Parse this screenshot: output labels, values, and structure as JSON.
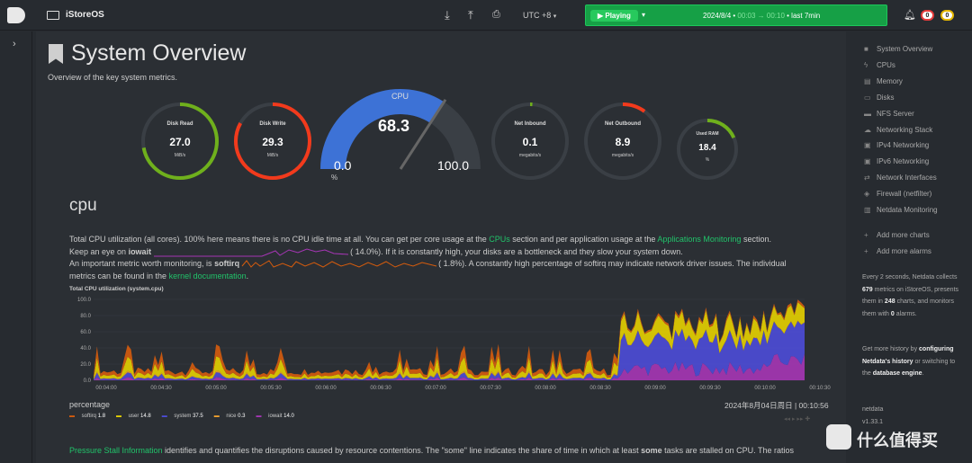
{
  "topbar": {
    "host": "iStoreOS",
    "timezone": "UTC +8",
    "play_label": "Playing",
    "date": "2024/8/4",
    "time_from": "00:03",
    "arrow": "→",
    "time_to": "00:10",
    "last": "• last 7min",
    "badge_red": "0",
    "badge_yellow": "0",
    "icons": [
      "download-icon",
      "upload-icon",
      "print-icon",
      "bell-icon"
    ]
  },
  "header": {
    "title": "System Overview",
    "subtitle": "Overview of the key system metrics."
  },
  "gauges": [
    {
      "title": "Disk Read",
      "value": "27.0",
      "unit": "MiB/s",
      "fraction": 0.72,
      "color": "#6fb01c"
    },
    {
      "title": "Disk Write",
      "value": "29.3",
      "unit": "MiB/s",
      "fraction": 0.83,
      "color": "#f23a1c"
    },
    {
      "title": "Net Inbound",
      "value": "0.1",
      "unit": "megabits/s",
      "fraction": 0.01,
      "color": "#6fb01c"
    },
    {
      "title": "Net Outbound",
      "value": "8.9",
      "unit": "megabits/s",
      "fraction": 0.1,
      "color": "#f23a1c"
    },
    {
      "title": "Used RAM",
      "value": "18.4",
      "unit": "%",
      "fraction": 0.184,
      "color": "#6fb01c"
    }
  ],
  "cpu_gauge": {
    "title": "CPU",
    "value": "68.3",
    "min": "0.0",
    "max": "100.0",
    "unit": "%",
    "fraction": 0.683
  },
  "section": {
    "title": "cpu",
    "p1a": "Total CPU utilization (all cores). 100% here means there is no CPU idle time at all. You can get per core usage at the ",
    "p1_link1": "CPUs",
    "p1b": " section and per application usage at the ",
    "p1_link2": "Applications Monitoring",
    "p1c": " section.",
    "p2a": "Keep an eye on ",
    "p2_bold": "iowait",
    "p2b": "(      14.0%). If it is constantly high, your disks are a bottleneck and they slow your system down.",
    "p3a": "An important metric worth monitoring, is ",
    "p3_bold": "softirq",
    "p3b": "(      1.8%). A constantly high percentage of softirq may indicate network driver issues. The individual",
    "p4a": "metrics can be found in the ",
    "p4_link": "kernel documentation",
    "p4b": "."
  },
  "chart_data": {
    "type": "area",
    "title": "Total CPU utilization (system.cpu)",
    "ylabel": "percentage",
    "ylim": [
      0,
      100
    ],
    "yticks": [
      "100.0",
      "80.0",
      "60.0",
      "40.0",
      "20.0",
      "0.0"
    ],
    "xticks": [
      "00:04:00",
      "00:04:30",
      "00:05:00",
      "00:05:30",
      "00:06:00",
      "00:06:30",
      "00:07:00",
      "00:07:30",
      "00:08:00",
      "00:08:30",
      "00:09:00",
      "00:09:30",
      "00:10:00",
      "00:10:30"
    ],
    "x_start": "00:03:54",
    "x_end": "00:10:56",
    "series": [
      {
        "name": "softirq",
        "color": "#d65c0d",
        "last": "1.8"
      },
      {
        "name": "user",
        "color": "#e6d200",
        "last": "14.8"
      },
      {
        "name": "system",
        "color": "#4c4cd8",
        "last": "37.5"
      },
      {
        "name": "nice",
        "color": "#f2a22e",
        "last": "0.3"
      },
      {
        "name": "iowait",
        "color": "#a636b5",
        "last": "14.0"
      }
    ],
    "timestamp": "2024年8月04日周日 | 00:10:56"
  },
  "psi": {
    "link": "Pressure Stall Information",
    "text": " identifies and quantifies the disruptions caused by resource contentions. The \"some\" line indicates the share of time in which at least ",
    "bold": "some",
    "text2": " tasks are stalled on CPU. The ratios"
  },
  "sidebar": {
    "items": [
      {
        "icon": "bookmark-icon",
        "label": "System Overview"
      },
      {
        "icon": "bolt-icon",
        "label": "CPUs"
      },
      {
        "icon": "memory-icon",
        "label": "Memory"
      },
      {
        "icon": "disk-icon",
        "label": "Disks"
      },
      {
        "icon": "folder-icon",
        "label": "NFS Server"
      },
      {
        "icon": "cloud-icon",
        "label": "Networking Stack"
      },
      {
        "icon": "network-icon",
        "label": "IPv4 Networking"
      },
      {
        "icon": "network-icon",
        "label": "IPv6 Networking"
      },
      {
        "icon": "exchange-icon",
        "label": "Network Interfaces"
      },
      {
        "icon": "shield-icon",
        "label": "Firewall (netfilter)"
      },
      {
        "icon": "chart-icon",
        "label": "Netdata Monitoring"
      }
    ],
    "add_charts": "Add more charts",
    "add_alarms": "Add more alarms",
    "info1": "Every 2 seconds, Netdata collects",
    "info_metrics": "679",
    "info2": "metrics on iStoreOS, presents them in",
    "info_charts": "248",
    "info3": "charts, and monitors them with",
    "info_alarms": "0",
    "info4": "alarms.",
    "hist1": "Get more history by",
    "hist_link1": "configuring Netdata's history",
    "hist2": " or switching to the ",
    "hist_link2": "database engine",
    "hist3": ".",
    "brand": "netdata",
    "version": "v1.33.1"
  },
  "watermark": "什么值得买"
}
